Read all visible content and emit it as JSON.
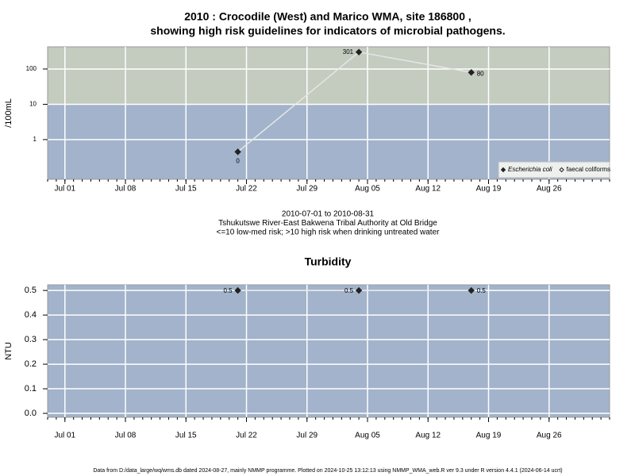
{
  "chart_data": [
    {
      "type": "line",
      "title": [
        "2010 : Crocodile (West) and Marico WMA, site 186800 ,",
        "showing high risk guidelines for indicators of microbial pathogens."
      ],
      "ylabel": "/100mL",
      "log_scale": true,
      "x": [
        "Jul 21",
        "Aug 04",
        "Aug 17"
      ],
      "series": [
        {
          "name": "Escherichia coli",
          "color": "#222222",
          "line_color": "#e6e6e6",
          "marker": "filled",
          "values": [
            0.45,
            301,
            80
          ],
          "value_labels": [
            "0",
            "301",
            "80"
          ]
        },
        {
          "name": "faecal coliforms",
          "color": "#222222",
          "marker": "open",
          "values": [
            null,
            null,
            null
          ]
        }
      ],
      "xlim": [
        "Jun 29",
        "Sep 02"
      ],
      "xticks": [
        "Jul 01",
        "Jul 08",
        "Jul 15",
        "Jul 22",
        "Jul 29",
        "Aug 05",
        "Aug 12",
        "Aug 19",
        "Aug 26"
      ],
      "ylim": [
        0.075,
        425
      ],
      "yticks": [
        1,
        10,
        100
      ],
      "bands": [
        {
          "from": 10,
          "color": "#c3ccbf"
        }
      ],
      "background": "#a2b3cb",
      "grid": true,
      "legend": "bottom-right",
      "caption": [
        "2010-07-01 to 2010-08-31",
        "Tshukutswe River-East Bakwena Tribal Authority at Old Bridge",
        "<=10 low-med risk; >10 high risk when drinking untreated water"
      ]
    },
    {
      "type": "line",
      "title": "Turbidity",
      "ylabel": "NTU",
      "log_scale": false,
      "x": [
        "Jul 21",
        "Aug 04",
        "Aug 17"
      ],
      "values": [
        0.5,
        0.5,
        0.5
      ],
      "color": "#222222",
      "line_color": "#e6e6e6",
      "xlim": [
        "Jun 29",
        "Sep 02"
      ],
      "xticks": [
        "Jul 01",
        "Jul 08",
        "Jul 15",
        "Jul 22",
        "Jul 29",
        "Aug 05",
        "Aug 12",
        "Aug 19",
        "Aug 26"
      ],
      "ylim": [
        -0.016,
        0.523
      ],
      "yticks": [
        {
          "value": 0,
          "label": "0.0"
        },
        0.1,
        0.2,
        0.3,
        0.4,
        0.5
      ],
      "background": "#a2b3cb",
      "grid": true
    }
  ],
  "footer": "Data from D:/data_large/wq/wms.db dated 2024-08-27, mainly NMMP programme. Plotted on 2024-10-25 13:12:13 using NMMP_WMA_web.R ver 9.3 under R version 4.4.1 (2024-06-14 ucrt)"
}
